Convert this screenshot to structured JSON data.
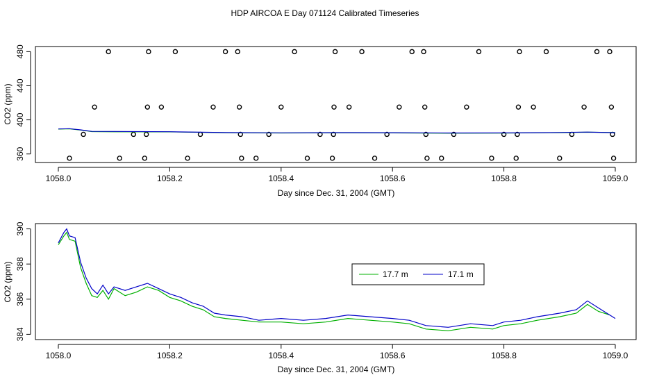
{
  "title": "HDP AIRCOA E  Day 071124  Calibrated Timeseries",
  "chart_data": [
    {
      "type": "scatter",
      "xlabel": "Day since Dec. 31, 2004 (GMT)",
      "ylabel": "CO2 (ppm)",
      "xlim": [
        1058.0,
        1059.0
      ],
      "ylim": [
        350,
        486
      ],
      "xticks": [
        "1058.0",
        "1058.2",
        "1058.4",
        "1058.6",
        "1058.8",
        "1059.0"
      ],
      "yticks": [
        "360",
        "400",
        "440",
        "480"
      ],
      "points": [
        [
          1058.02,
          355
        ],
        [
          1058.045,
          383
        ],
        [
          1058.065,
          415
        ],
        [
          1058.09,
          480
        ],
        [
          1058.11,
          355
        ],
        [
          1058.135,
          383
        ],
        [
          1058.155,
          355
        ],
        [
          1058.158,
          383
        ],
        [
          1058.16,
          415
        ],
        [
          1058.162,
          480
        ],
        [
          1058.185,
          415
        ],
        [
          1058.21,
          480
        ],
        [
          1058.232,
          355
        ],
        [
          1058.255,
          383
        ],
        [
          1058.278,
          415
        ],
        [
          1058.3,
          480
        ],
        [
          1058.322,
          480
        ],
        [
          1058.325,
          415
        ],
        [
          1058.327,
          383
        ],
        [
          1058.329,
          355
        ],
        [
          1058.355,
          355
        ],
        [
          1058.378,
          383
        ],
        [
          1058.4,
          415
        ],
        [
          1058.424,
          480
        ],
        [
          1058.447,
          355
        ],
        [
          1058.47,
          383
        ],
        [
          1058.492,
          355
        ],
        [
          1058.494,
          383
        ],
        [
          1058.495,
          415
        ],
        [
          1058.497,
          480
        ],
        [
          1058.522,
          415
        ],
        [
          1058.545,
          480
        ],
        [
          1058.568,
          355
        ],
        [
          1058.59,
          383
        ],
        [
          1058.612,
          415
        ],
        [
          1058.635,
          480
        ],
        [
          1058.656,
          480
        ],
        [
          1058.658,
          415
        ],
        [
          1058.66,
          383
        ],
        [
          1058.662,
          355
        ],
        [
          1058.688,
          355
        ],
        [
          1058.71,
          383
        ],
        [
          1058.733,
          415
        ],
        [
          1058.755,
          480
        ],
        [
          1058.778,
          355
        ],
        [
          1058.8,
          383
        ],
        [
          1058.822,
          355
        ],
        [
          1058.824,
          383
        ],
        [
          1058.826,
          415
        ],
        [
          1058.828,
          480
        ],
        [
          1058.853,
          415
        ],
        [
          1058.876,
          480
        ],
        [
          1058.9,
          355
        ],
        [
          1058.922,
          383
        ],
        [
          1058.944,
          415
        ],
        [
          1058.967,
          480
        ],
        [
          1058.99,
          480
        ],
        [
          1058.993,
          415
        ],
        [
          1058.995,
          383
        ],
        [
          1058.997,
          355
        ]
      ],
      "series": [
        {
          "name": "17.7 m",
          "color": "#00b000",
          "x": [
            1058.0,
            1058.02,
            1058.04,
            1058.06,
            1058.1,
            1058.2,
            1058.3,
            1058.4,
            1058.5,
            1058.6,
            1058.7,
            1058.8,
            1058.9,
            1058.95,
            1059.0
          ],
          "y": [
            389.2,
            389.5,
            388.0,
            386.2,
            386.0,
            385.9,
            384.9,
            384.6,
            384.8,
            384.7,
            384.4,
            384.5,
            385.0,
            385.5,
            385.1
          ]
        },
        {
          "name": "17.1 m",
          "color": "#0000c8",
          "x": [
            1058.0,
            1058.02,
            1058.04,
            1058.06,
            1058.1,
            1058.2,
            1058.3,
            1058.4,
            1058.5,
            1058.6,
            1058.7,
            1058.8,
            1058.9,
            1058.95,
            1059.0
          ],
          "y": [
            389.3,
            389.7,
            388.3,
            386.5,
            386.4,
            386.1,
            385.1,
            384.8,
            385.0,
            384.9,
            384.6,
            384.7,
            385.2,
            385.7,
            384.9
          ]
        }
      ]
    },
    {
      "type": "line",
      "xlabel": "Day since Dec. 31, 2004 (GMT)",
      "ylabel": "CO2 (ppm)",
      "xlim": [
        1058.0,
        1059.0
      ],
      "ylim": [
        383.7,
        390.3
      ],
      "xticks": [
        "1058.0",
        "1058.2",
        "1058.4",
        "1058.6",
        "1058.8",
        "1059.0"
      ],
      "yticks": [
        "384",
        "386",
        "388",
        "390"
      ],
      "legend": "center-right",
      "series": [
        {
          "name": "17.7 m",
          "color": "#00b000",
          "x": [
            1058.0,
            1058.01,
            1058.015,
            1058.02,
            1058.03,
            1058.04,
            1058.05,
            1058.06,
            1058.07,
            1058.08,
            1058.09,
            1058.1,
            1058.12,
            1058.14,
            1058.16,
            1058.18,
            1058.2,
            1058.22,
            1058.24,
            1058.26,
            1058.28,
            1058.3,
            1058.33,
            1058.36,
            1058.4,
            1058.44,
            1058.48,
            1058.52,
            1058.56,
            1058.6,
            1058.63,
            1058.66,
            1058.7,
            1058.74,
            1058.78,
            1058.8,
            1058.83,
            1058.86,
            1058.9,
            1058.93,
            1058.95,
            1058.97,
            1058.99
          ],
          "y": [
            389.1,
            389.6,
            389.8,
            389.4,
            389.3,
            387.8,
            386.9,
            386.2,
            386.1,
            386.5,
            386.0,
            386.6,
            386.2,
            386.4,
            386.7,
            386.5,
            386.1,
            385.9,
            385.6,
            385.4,
            385.0,
            384.9,
            384.8,
            384.7,
            384.7,
            384.6,
            384.7,
            384.9,
            384.8,
            384.7,
            384.6,
            384.3,
            384.2,
            384.4,
            384.3,
            384.5,
            384.6,
            384.8,
            385.0,
            385.2,
            385.7,
            385.3,
            385.1
          ]
        },
        {
          "name": "17.1 m",
          "color": "#0000c8",
          "x": [
            1058.0,
            1058.01,
            1058.015,
            1058.02,
            1058.03,
            1058.04,
            1058.05,
            1058.06,
            1058.07,
            1058.08,
            1058.09,
            1058.1,
            1058.12,
            1058.14,
            1058.16,
            1058.18,
            1058.2,
            1058.22,
            1058.24,
            1058.26,
            1058.28,
            1058.3,
            1058.33,
            1058.36,
            1058.4,
            1058.44,
            1058.48,
            1058.52,
            1058.56,
            1058.6,
            1058.63,
            1058.66,
            1058.7,
            1058.74,
            1058.78,
            1058.8,
            1058.83,
            1058.86,
            1058.9,
            1058.93,
            1058.95,
            1058.97,
            1059.0
          ],
          "y": [
            389.2,
            389.8,
            390.0,
            389.6,
            389.5,
            388.1,
            387.2,
            386.6,
            386.3,
            386.8,
            386.3,
            386.7,
            386.5,
            386.7,
            386.9,
            386.6,
            386.3,
            386.1,
            385.8,
            385.6,
            385.2,
            385.1,
            385.0,
            384.8,
            384.9,
            384.8,
            384.9,
            385.1,
            385.0,
            384.9,
            384.8,
            384.5,
            384.4,
            384.6,
            384.5,
            384.7,
            384.8,
            385.0,
            385.2,
            385.4,
            385.9,
            385.5,
            384.9
          ]
        }
      ]
    }
  ]
}
